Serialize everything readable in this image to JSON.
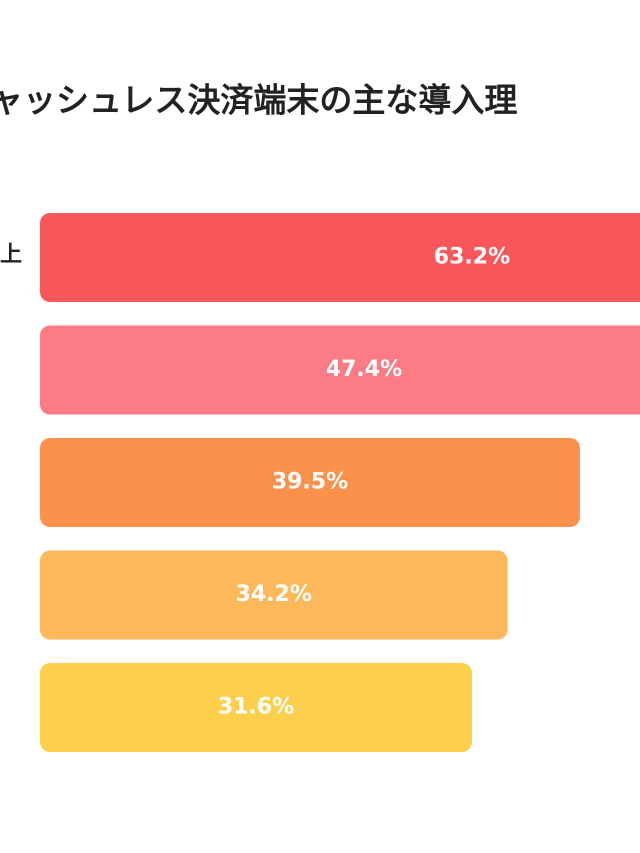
{
  "chart_data": {
    "type": "bar",
    "orientation": "horizontal",
    "title": "ャッシュレス決済端末の主な導入理",
    "categories": [
      "上",
      null,
      null,
      null,
      null
    ],
    "values": [
      63.2,
      47.4,
      39.5,
      34.2,
      31.6
    ],
    "value_labels": [
      "63.2%",
      "47.4%",
      "39.5%",
      "34.2%",
      "31.6%"
    ],
    "colors": [
      "#f9575b",
      "#fc7b84",
      "#fc914c",
      "#fdb85a",
      "#fecf4d"
    ]
  }
}
